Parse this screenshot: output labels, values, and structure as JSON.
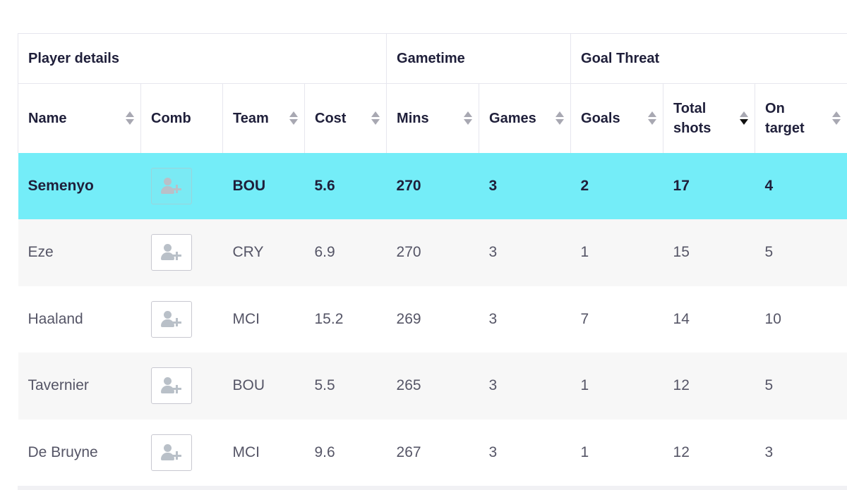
{
  "groups": {
    "player_details": "Player details",
    "gametime": "Gametime",
    "goal_threat": "Goal Threat"
  },
  "columns": {
    "name": "Name",
    "comb": "Comb",
    "team": "Team",
    "cost": "Cost",
    "mins": "Mins",
    "games": "Games",
    "goals": "Goals",
    "total_shots_1": "Total",
    "total_shots_2": "shots",
    "on_target_1": "On",
    "on_target_2": "target"
  },
  "icons": {
    "sort": "sort-arrows-icon",
    "comb": "user-plus-icon"
  },
  "colors": {
    "highlight_row": "#74edf8",
    "alt_row": "#f7f7f7",
    "active_sort_arrow": "#111111"
  },
  "sorted_by": "total_shots",
  "sort_direction": "descending",
  "rows": [
    {
      "name": "Semenyo",
      "team": "BOU",
      "cost": "5.6",
      "mins": "270",
      "games": "3",
      "goals": "2",
      "total_shots": "17",
      "on_target": "4"
    },
    {
      "name": "Eze",
      "team": "CRY",
      "cost": "6.9",
      "mins": "270",
      "games": "3",
      "goals": "1",
      "total_shots": "15",
      "on_target": "5"
    },
    {
      "name": "Haaland",
      "team": "MCI",
      "cost": "15.2",
      "mins": "269",
      "games": "3",
      "goals": "7",
      "total_shots": "14",
      "on_target": "10"
    },
    {
      "name": "Tavernier",
      "team": "BOU",
      "cost": "5.5",
      "mins": "265",
      "games": "3",
      "goals": "1",
      "total_shots": "12",
      "on_target": "5"
    },
    {
      "name": "De Bruyne",
      "team": "MCI",
      "cost": "9.6",
      "mins": "267",
      "games": "3",
      "goals": "1",
      "total_shots": "12",
      "on_target": "3"
    }
  ]
}
